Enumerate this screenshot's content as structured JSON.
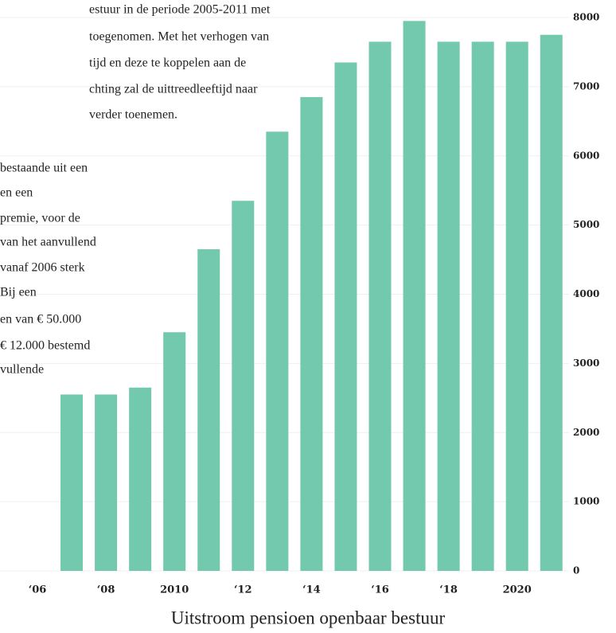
{
  "chart_data": {
    "type": "bar",
    "title": "Uitstroom pensioen openbaar bestuur",
    "annotations": [
      "estuur in de  periode 2005-2011 met",
      "toegenomen. Met het verhogen van",
      "tijd en deze te koppelen aan de",
      "chting zal de uittreedleeftijd naar",
      " verder toenemen.",
      "bestaande uit een",
      "en een",
      "premie, voor de",
      " van het aanvullend",
      "vanaf 2006 sterk",
      "Bij een",
      "en van € 50.000",
      "€ 12.000 bestemd",
      "vullende"
    ],
    "categories": [
      "‘06",
      null,
      "‘08",
      null,
      "2010",
      null,
      "‘12",
      null,
      "‘14",
      null,
      "‘16",
      null,
      "‘18",
      null,
      "2020",
      null
    ],
    "values": [
      null,
      2550,
      2550,
      2650,
      3450,
      4650,
      5350,
      6350,
      6850,
      7350,
      7650,
      7950,
      7650,
      7650,
      7650,
      7750
    ],
    "color": "#72c9ad",
    "ylim": [
      0,
      8000
    ],
    "yticks": [
      0,
      1000,
      2000,
      3000,
      4000,
      5000,
      6000,
      7000,
      8000
    ],
    "grid": true
  }
}
